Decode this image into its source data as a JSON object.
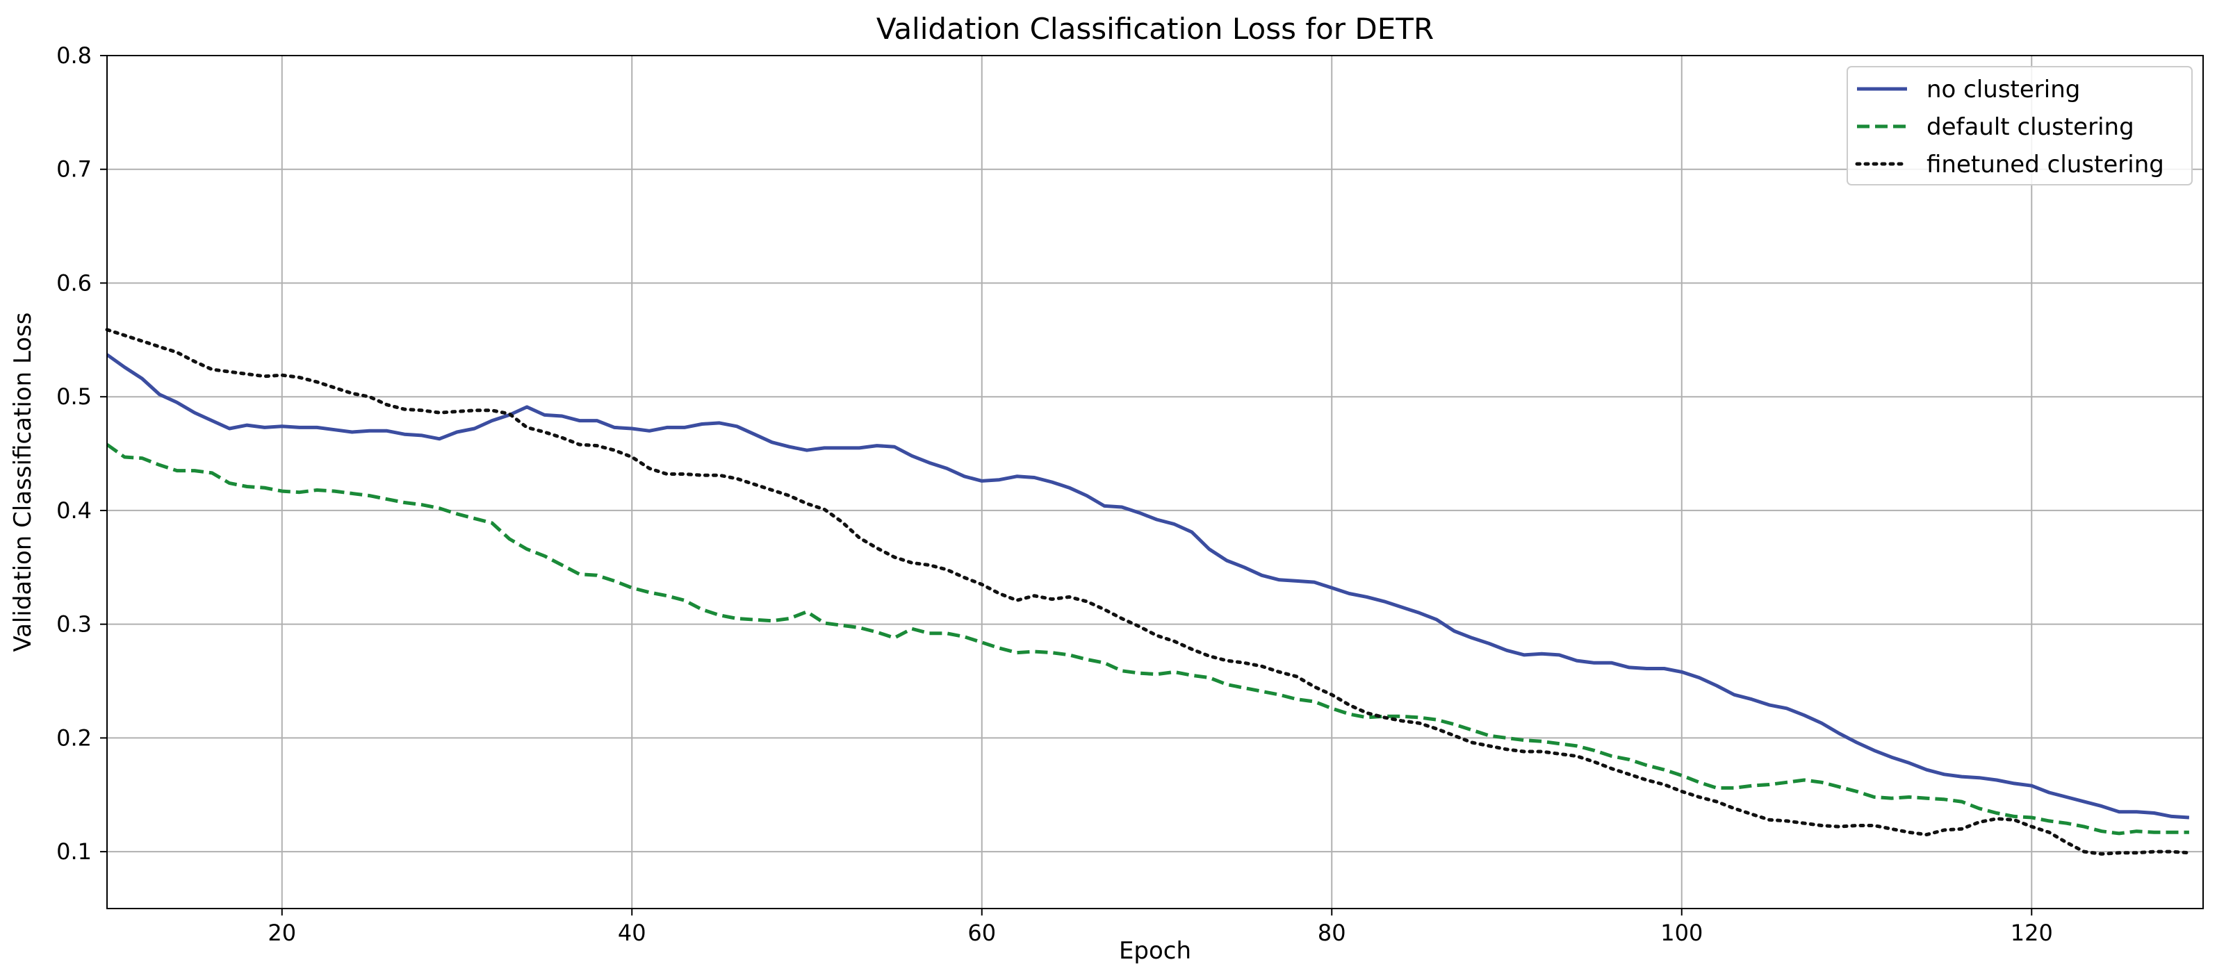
{
  "chart_data": {
    "type": "line",
    "title": "Validation Classification Loss for DETR",
    "xlabel": "Epoch",
    "ylabel": "Validation Classification Loss",
    "xlim": [
      10,
      129.8
    ],
    "ylim": [
      0.05,
      0.8
    ],
    "xticks": [
      20,
      40,
      60,
      80,
      100,
      120
    ],
    "xtick_labels": [
      "20",
      "40",
      "60",
      "80",
      "100",
      "120"
    ],
    "yticks": [
      0.1,
      0.2,
      0.3,
      0.4,
      0.5,
      0.6,
      0.7,
      0.8
    ],
    "ytick_labels": [
      "0.1",
      "0.2",
      "0.3",
      "0.4",
      "0.5",
      "0.6",
      "0.7",
      "0.8"
    ],
    "grid": true,
    "legend_position": "top-right",
    "series": [
      {
        "name": "no clustering",
        "color": "#3b4da0",
        "dash": "solid",
        "x": [
          10,
          11,
          12,
          13,
          14,
          15,
          16,
          17,
          18,
          19,
          20,
          21,
          22,
          23,
          24,
          25,
          26,
          27,
          28,
          29,
          30,
          31,
          32,
          33,
          34,
          35,
          36,
          37,
          38,
          39,
          40,
          41,
          42,
          43,
          44,
          45,
          46,
          47,
          48,
          49,
          50,
          51,
          52,
          53,
          54,
          55,
          56,
          57,
          58,
          59,
          60,
          61,
          62,
          63,
          64,
          65,
          66,
          67,
          68,
          69,
          70,
          71,
          72,
          73,
          74,
          75,
          76,
          77,
          78,
          79,
          80,
          81,
          82,
          83,
          84,
          85,
          86,
          87,
          88,
          89,
          90,
          91,
          92,
          93,
          94,
          95,
          96,
          97,
          98,
          99,
          100,
          101,
          102,
          103,
          104,
          105,
          106,
          107,
          108,
          109,
          110,
          111,
          112,
          113,
          114,
          115,
          116,
          117,
          118,
          119,
          120,
          121,
          122,
          123,
          124,
          125,
          126,
          127,
          128,
          129
        ],
        "values": [
          0.537,
          0.526,
          0.516,
          0.502,
          0.495,
          0.486,
          0.479,
          0.472,
          0.475,
          0.473,
          0.474,
          0.473,
          0.473,
          0.471,
          0.469,
          0.47,
          0.47,
          0.467,
          0.466,
          0.463,
          0.469,
          0.472,
          0.479,
          0.484,
          0.491,
          0.484,
          0.483,
          0.479,
          0.479,
          0.473,
          0.472,
          0.47,
          0.473,
          0.473,
          0.476,
          0.477,
          0.474,
          0.467,
          0.46,
          0.456,
          0.453,
          0.455,
          0.455,
          0.455,
          0.457,
          0.456,
          0.448,
          0.442,
          0.437,
          0.43,
          0.426,
          0.427,
          0.43,
          0.429,
          0.425,
          0.42,
          0.413,
          0.404,
          0.403,
          0.398,
          0.392,
          0.388,
          0.381,
          0.366,
          0.356,
          0.35,
          0.343,
          0.339,
          0.338,
          0.337,
          0.332,
          0.327,
          0.324,
          0.32,
          0.315,
          0.31,
          0.304,
          0.294,
          0.288,
          0.283,
          0.277,
          0.273,
          0.274,
          0.273,
          0.268,
          0.266,
          0.266,
          0.262,
          0.261,
          0.261,
          0.258,
          0.253,
          0.246,
          0.238,
          0.234,
          0.229,
          0.226,
          0.22,
          0.213,
          0.204,
          0.196,
          0.189,
          0.183,
          0.178,
          0.172,
          0.168,
          0.166,
          0.165,
          0.163,
          0.16,
          0.158,
          0.152,
          0.148,
          0.144,
          0.14,
          0.135,
          0.135,
          0.134,
          0.131,
          0.13
        ]
      },
      {
        "name": "default clustering",
        "color": "#1a8a38",
        "dash": "dashed",
        "x": [
          10,
          11,
          12,
          13,
          14,
          15,
          16,
          17,
          18,
          19,
          20,
          21,
          22,
          23,
          24,
          25,
          26,
          27,
          28,
          29,
          30,
          31,
          32,
          33,
          34,
          35,
          36,
          37,
          38,
          39,
          40,
          41,
          42,
          43,
          44,
          45,
          46,
          47,
          48,
          49,
          50,
          51,
          52,
          53,
          54,
          55,
          56,
          57,
          58,
          59,
          60,
          61,
          62,
          63,
          64,
          65,
          66,
          67,
          68,
          69,
          70,
          71,
          72,
          73,
          74,
          75,
          76,
          77,
          78,
          79,
          80,
          81,
          82,
          83,
          84,
          85,
          86,
          87,
          88,
          89,
          90,
          91,
          92,
          93,
          94,
          95,
          96,
          97,
          98,
          99,
          100,
          101,
          102,
          103,
          104,
          105,
          106,
          107,
          108,
          109,
          110,
          111,
          112,
          113,
          114,
          115,
          116,
          117,
          118,
          119,
          120,
          121,
          122,
          123,
          124,
          125,
          126,
          127,
          128,
          129
        ],
        "values": [
          0.458,
          0.447,
          0.446,
          0.44,
          0.435,
          0.435,
          0.433,
          0.424,
          0.421,
          0.42,
          0.417,
          0.416,
          0.418,
          0.417,
          0.415,
          0.413,
          0.41,
          0.407,
          0.405,
          0.402,
          0.397,
          0.393,
          0.389,
          0.375,
          0.366,
          0.36,
          0.352,
          0.344,
          0.343,
          0.338,
          0.332,
          0.328,
          0.325,
          0.321,
          0.313,
          0.308,
          0.305,
          0.304,
          0.303,
          0.305,
          0.311,
          0.301,
          0.299,
          0.297,
          0.293,
          0.288,
          0.296,
          0.292,
          0.292,
          0.289,
          0.284,
          0.279,
          0.275,
          0.276,
          0.275,
          0.273,
          0.269,
          0.266,
          0.259,
          0.257,
          0.256,
          0.258,
          0.255,
          0.253,
          0.247,
          0.244,
          0.241,
          0.238,
          0.234,
          0.232,
          0.226,
          0.221,
          0.218,
          0.219,
          0.219,
          0.218,
          0.216,
          0.212,
          0.207,
          0.202,
          0.2,
          0.198,
          0.197,
          0.195,
          0.193,
          0.189,
          0.184,
          0.181,
          0.176,
          0.172,
          0.167,
          0.161,
          0.156,
          0.156,
          0.158,
          0.159,
          0.161,
          0.163,
          0.161,
          0.157,
          0.153,
          0.148,
          0.147,
          0.148,
          0.147,
          0.146,
          0.144,
          0.138,
          0.134,
          0.131,
          0.13,
          0.127,
          0.125,
          0.122,
          0.118,
          0.116,
          0.118,
          0.117,
          0.117,
          0.117
        ]
      },
      {
        "name": "finetuned clustering",
        "color": "#111111",
        "dash": "dotted",
        "x": [
          10,
          11,
          12,
          13,
          14,
          15,
          16,
          17,
          18,
          19,
          20,
          21,
          22,
          23,
          24,
          25,
          26,
          27,
          28,
          29,
          30,
          31,
          32,
          33,
          34,
          35,
          36,
          37,
          38,
          39,
          40,
          41,
          42,
          43,
          44,
          45,
          46,
          47,
          48,
          49,
          50,
          51,
          52,
          53,
          54,
          55,
          56,
          57,
          58,
          59,
          60,
          61,
          62,
          63,
          64,
          65,
          66,
          67,
          68,
          69,
          70,
          71,
          72,
          73,
          74,
          75,
          76,
          77,
          78,
          79,
          80,
          81,
          82,
          83,
          84,
          85,
          86,
          87,
          88,
          89,
          90,
          91,
          92,
          93,
          94,
          95,
          96,
          97,
          98,
          99,
          100,
          101,
          102,
          103,
          104,
          105,
          106,
          107,
          108,
          109,
          110,
          111,
          112,
          113,
          114,
          115,
          116,
          117,
          118,
          119,
          120,
          121,
          122,
          123,
          124,
          125,
          126,
          127,
          128,
          129
        ],
        "values": [
          0.559,
          0.554,
          0.549,
          0.544,
          0.539,
          0.531,
          0.524,
          0.522,
          0.52,
          0.518,
          0.519,
          0.517,
          0.513,
          0.508,
          0.503,
          0.5,
          0.493,
          0.489,
          0.488,
          0.486,
          0.487,
          0.488,
          0.488,
          0.485,
          0.473,
          0.469,
          0.464,
          0.458,
          0.457,
          0.453,
          0.447,
          0.437,
          0.432,
          0.432,
          0.431,
          0.431,
          0.428,
          0.423,
          0.418,
          0.413,
          0.406,
          0.401,
          0.39,
          0.376,
          0.367,
          0.359,
          0.354,
          0.352,
          0.348,
          0.341,
          0.335,
          0.327,
          0.321,
          0.325,
          0.322,
          0.324,
          0.32,
          0.313,
          0.305,
          0.298,
          0.29,
          0.285,
          0.278,
          0.272,
          0.268,
          0.266,
          0.263,
          0.258,
          0.254,
          0.245,
          0.238,
          0.229,
          0.222,
          0.218,
          0.215,
          0.213,
          0.208,
          0.202,
          0.196,
          0.193,
          0.19,
          0.188,
          0.188,
          0.186,
          0.184,
          0.179,
          0.173,
          0.168,
          0.163,
          0.159,
          0.153,
          0.148,
          0.144,
          0.138,
          0.133,
          0.128,
          0.127,
          0.125,
          0.123,
          0.122,
          0.123,
          0.123,
          0.12,
          0.117,
          0.115,
          0.119,
          0.12,
          0.126,
          0.129,
          0.128,
          0.122,
          0.117,
          0.108,
          0.1,
          0.098,
          0.099,
          0.099,
          0.1,
          0.1,
          0.099
        ]
      }
    ]
  }
}
